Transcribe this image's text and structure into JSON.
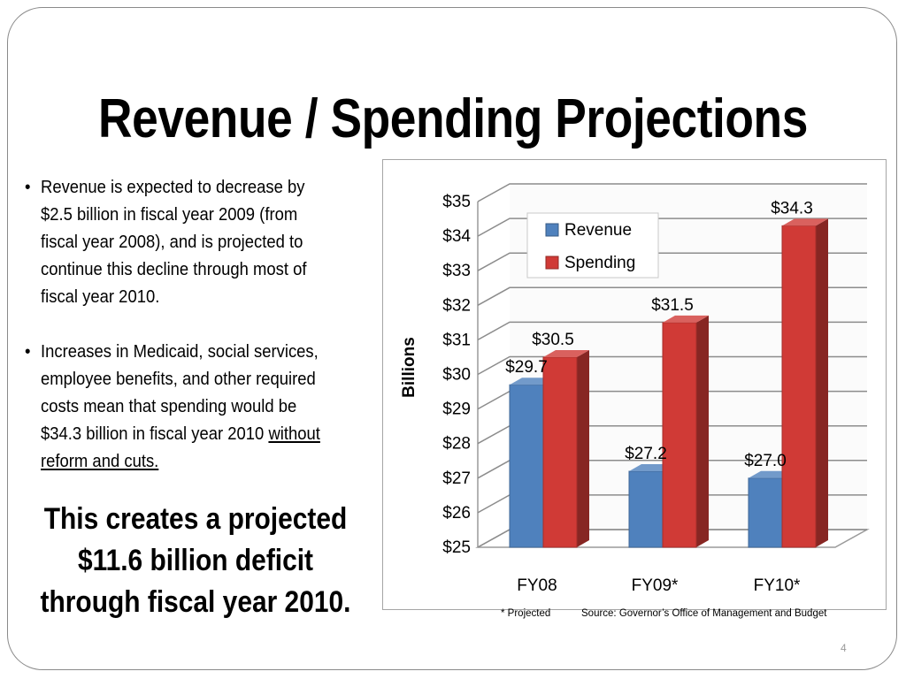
{
  "slide": {
    "title": "Revenue / Spending Projections",
    "bullets": [
      {
        "text": "Revenue is expected to decrease by $2.5 billion in fiscal year 2009 (from fiscal year 2008), and is projected to continue this decline through most of fiscal year 2010."
      },
      {
        "text": "Increases in Medicaid, social services, employee benefits, and other required costs mean that spending would be $34.3 billion in fiscal year 2010 ",
        "underlined": "without reform and cuts."
      }
    ],
    "deficit_text": "This creates a projected $11.6 billion deficit through fiscal year 2010.",
    "footnote_projected": "* Projected",
    "footnote_source": "Source: Governor’s Office of Management and Budget",
    "page_number": "4"
  },
  "chart_data": {
    "type": "bar",
    "title": "",
    "ylabel": "Billions",
    "xlabel": "",
    "ylim": [
      25,
      35
    ],
    "yticks": [
      "$25",
      "$26",
      "$27",
      "$28",
      "$29",
      "$30",
      "$31",
      "$32",
      "$33",
      "$34",
      "$35"
    ],
    "categories": [
      "FY08",
      "FY09*",
      "FY10*"
    ],
    "series": [
      {
        "name": "Revenue",
        "values": [
          29.7,
          27.2,
          27.0
        ],
        "labels": [
          "$29.7",
          "$27.2",
          "$27.0"
        ],
        "color": "#4f81bd"
      },
      {
        "name": "Spending",
        "values": [
          30.5,
          31.5,
          34.3
        ],
        "labels": [
          "$30.5",
          "$31.5",
          "$34.3"
        ],
        "color": "#d03a36"
      }
    ],
    "grid": true,
    "legend": "top-center",
    "style": "3d-clustered-column"
  }
}
